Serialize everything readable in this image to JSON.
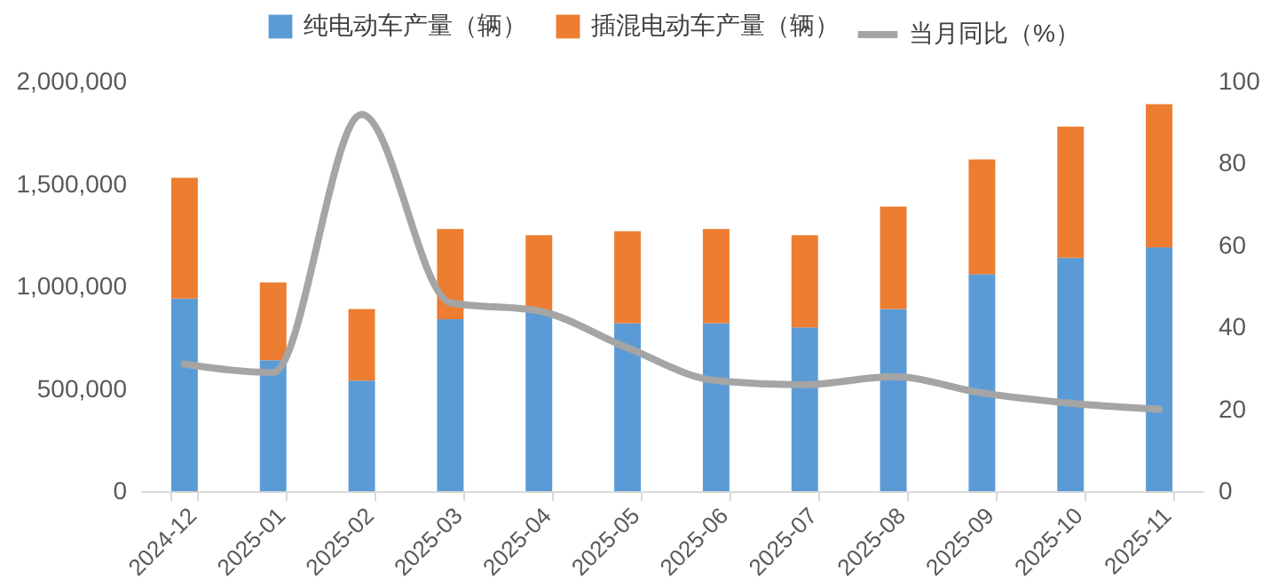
{
  "chart_data": {
    "type": "bar",
    "stacked": true,
    "legend": "top",
    "grid": false,
    "categories": [
      "2024-12",
      "2025-01",
      "2025-02",
      "2025-03",
      "2025-04",
      "2025-05",
      "2025-06",
      "2025-07",
      "2025-08",
      "2025-09",
      "2025-10",
      "2025-11"
    ],
    "series": [
      {
        "name": "纯电动车产量（辆）",
        "color": "#5b9bd5",
        "values": [
          940000,
          640000,
          540000,
          840000,
          880000,
          820000,
          820000,
          800000,
          890000,
          1060000,
          1140000,
          1190000
        ]
      },
      {
        "name": "插混电动车产量（辆）",
        "color": "#ed7d31",
        "values": [
          590000,
          380000,
          350000,
          440000,
          370000,
          450000,
          460000,
          450000,
          500000,
          560000,
          640000,
          700000
        ]
      },
      {
        "name": "当月同比（%）",
        "color": "#a5a5a5",
        "type": "line",
        "axis": "y2",
        "values": [
          31,
          29,
          92,
          46,
          44,
          35,
          27,
          26,
          28,
          24,
          21.5,
          20
        ]
      }
    ],
    "ylim": [
      0,
      2000000
    ],
    "yticks": [
      0,
      {
        "value": 500000,
        "label": "500,000"
      },
      {
        "value": 1000000,
        "label": "1,000,000"
      },
      {
        "value": 1500000,
        "label": "1,500,000"
      },
      {
        "value": 2000000,
        "label": "2,000,000"
      }
    ],
    "y2lim": [
      0,
      100
    ],
    "y2ticks": [
      0,
      20,
      40,
      60,
      80,
      100
    ]
  }
}
